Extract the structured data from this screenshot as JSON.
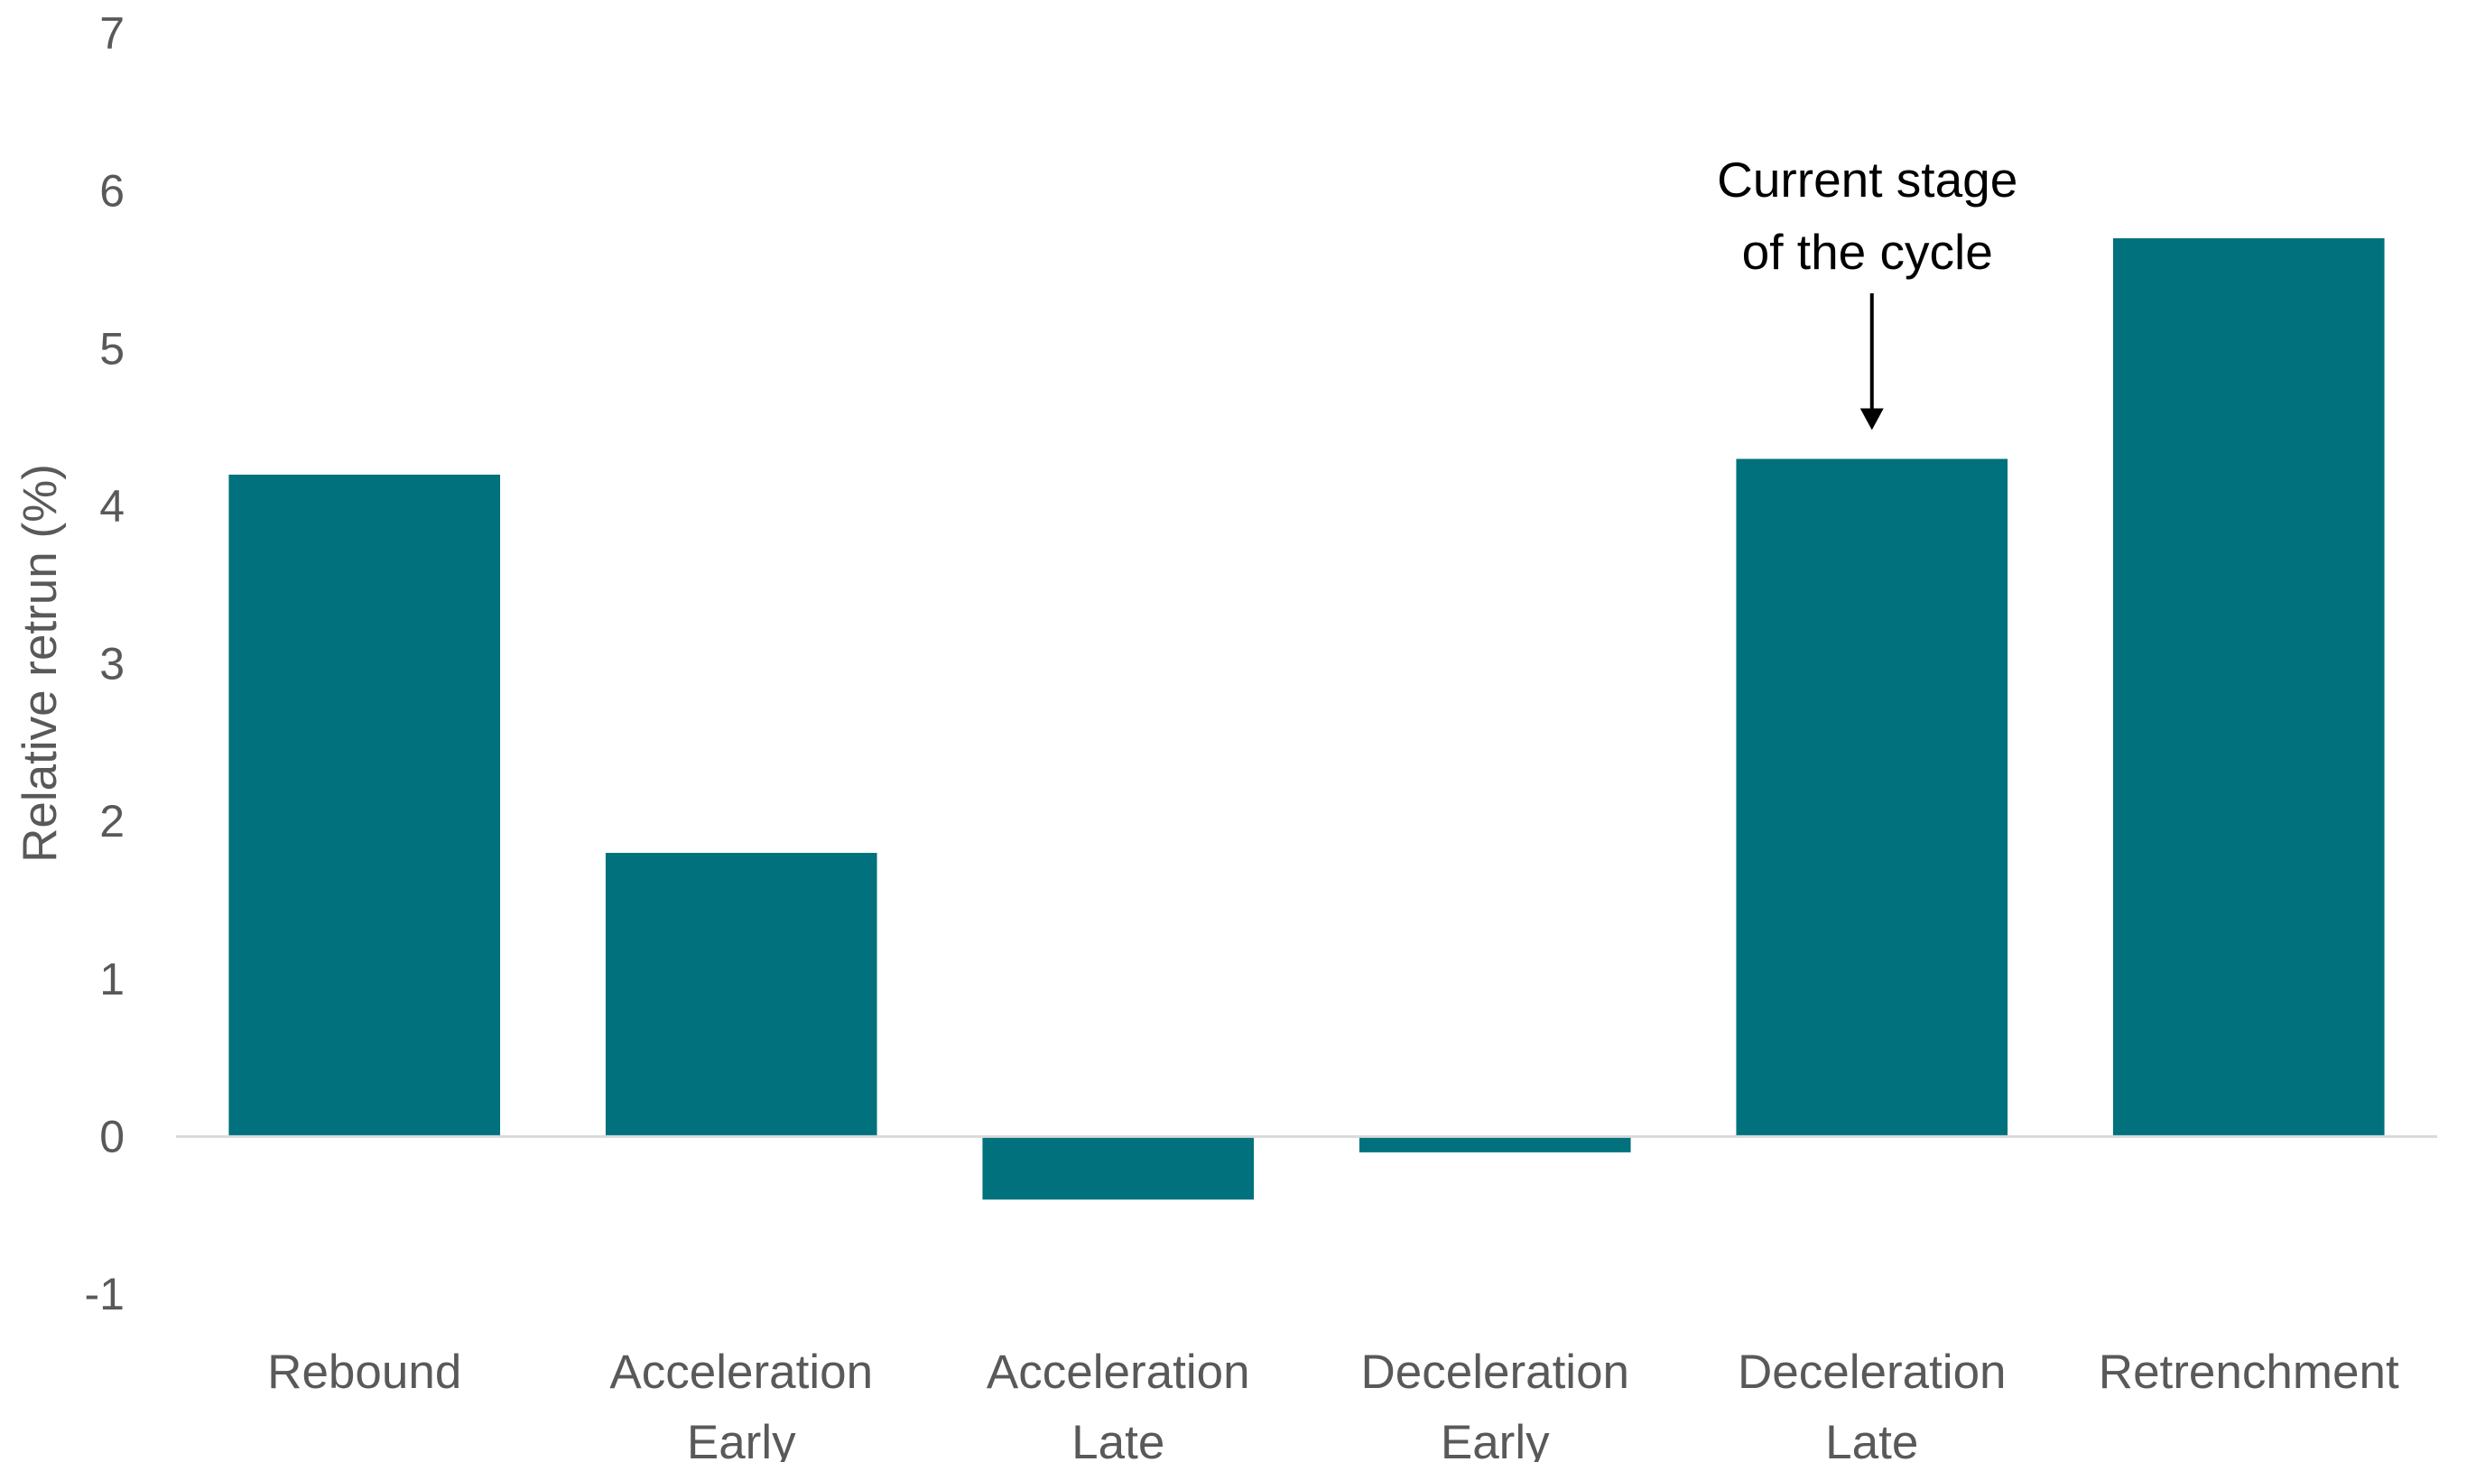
{
  "chart_data": {
    "type": "bar",
    "categories": [
      [
        "Rebound"
      ],
      [
        "Acceleration",
        "Early"
      ],
      [
        "Acceleration",
        "Late"
      ],
      [
        "Deceleration",
        "Early"
      ],
      [
        "Deceleration",
        "Late"
      ],
      [
        "Retrenchment"
      ]
    ],
    "values": [
      4.2,
      1.8,
      -0.4,
      -0.1,
      4.3,
      5.7
    ],
    "title": "",
    "xlabel": "",
    "ylabel": "Relative  retrun (%)",
    "ylim": [
      -1,
      7
    ],
    "yticks": [
      -1,
      0,
      1,
      2,
      3,
      4,
      5,
      6,
      7
    ],
    "grid": false,
    "legend": "none",
    "bar_color": "#00717D",
    "annotation": {
      "lines": [
        "Current stage",
        "of the cycle"
      ],
      "target_category_index": 4
    }
  }
}
